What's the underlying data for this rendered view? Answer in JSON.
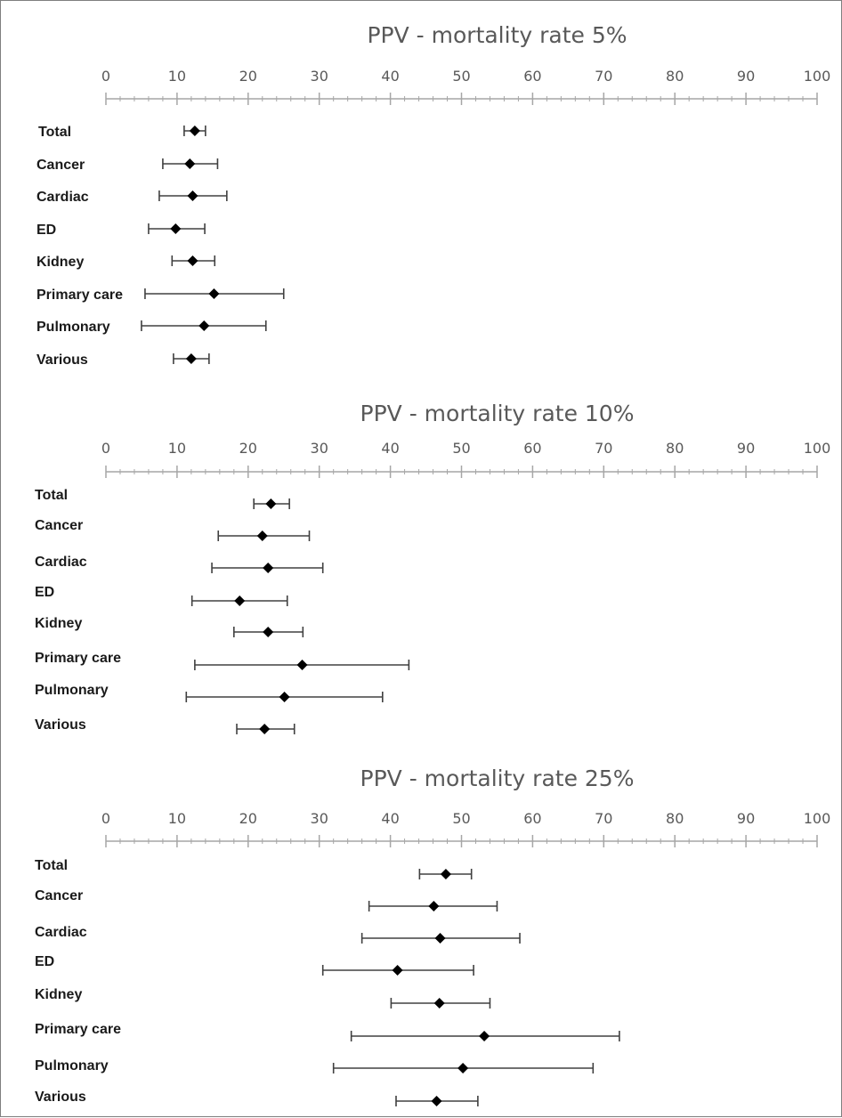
{
  "chart_data": [
    {
      "type": "errorbar",
      "title": "PPV - mortality rate 5%",
      "xlim": [
        0,
        100
      ],
      "x_ticks": [
        "0",
        "10",
        "20",
        "30",
        "40",
        "50",
        "60",
        "70",
        "80",
        "90",
        "100"
      ],
      "axis_position": "top",
      "categories": [
        "Total",
        "Cancer",
        "Cardiac",
        "ED",
        "Kidney",
        "Primary care",
        "Pulmonary",
        "Various"
      ],
      "values": [
        12.5,
        11.8,
        12.2,
        9.8,
        12.2,
        15.2,
        13.8,
        12.0
      ],
      "lower": [
        11.0,
        8.0,
        7.5,
        6.0,
        9.3,
        5.5,
        5.0,
        9.5
      ],
      "upper": [
        14.0,
        15.7,
        17.0,
        13.9,
        15.3,
        25.0,
        22.5,
        14.5
      ],
      "colors": {
        "marker": "#000000",
        "errorbar": "#404040",
        "axis": "#a6a6a6"
      }
    },
    {
      "type": "errorbar",
      "title": "PPV - mortality rate 10%",
      "xlim": [
        0,
        100
      ],
      "x_ticks": [
        "0",
        "10",
        "20",
        "30",
        "40",
        "50",
        "60",
        "70",
        "80",
        "90",
        "100"
      ],
      "axis_position": "top",
      "categories": [
        "Total",
        "Cancer",
        "Cardiac",
        "ED",
        "Kidney",
        "Primary care",
        "Pulmonary",
        "Various"
      ],
      "values": [
        23.2,
        22.0,
        22.8,
        18.8,
        22.8,
        27.6,
        25.1,
        22.3
      ],
      "lower": [
        20.8,
        15.8,
        14.9,
        12.1,
        18.0,
        12.5,
        11.3,
        18.4
      ],
      "upper": [
        25.8,
        28.6,
        30.5,
        25.5,
        27.7,
        42.6,
        38.9,
        26.5
      ],
      "colors": {
        "marker": "#000000",
        "errorbar": "#404040",
        "axis": "#a6a6a6"
      }
    },
    {
      "type": "errorbar",
      "title": "PPV - mortality rate 25%",
      "xlim": [
        0,
        100
      ],
      "x_ticks": [
        "0",
        "10",
        "20",
        "30",
        "40",
        "50",
        "60",
        "70",
        "80",
        "90",
        "100"
      ],
      "axis_position": "top",
      "categories": [
        "Total",
        "Cancer",
        "Cardiac",
        "ED",
        "Kidney",
        "Primary care",
        "Pulmonary",
        "Various"
      ],
      "values": [
        47.8,
        46.1,
        47.0,
        41.0,
        46.9,
        53.2,
        50.2,
        46.5
      ],
      "lower": [
        44.1,
        37.0,
        36.0,
        30.5,
        40.1,
        34.5,
        32.0,
        40.8
      ],
      "upper": [
        51.4,
        55.0,
        58.2,
        51.7,
        54.0,
        72.2,
        68.5,
        52.3
      ],
      "colors": {
        "marker": "#000000",
        "errorbar": "#404040",
        "axis": "#a6a6a6"
      }
    }
  ]
}
